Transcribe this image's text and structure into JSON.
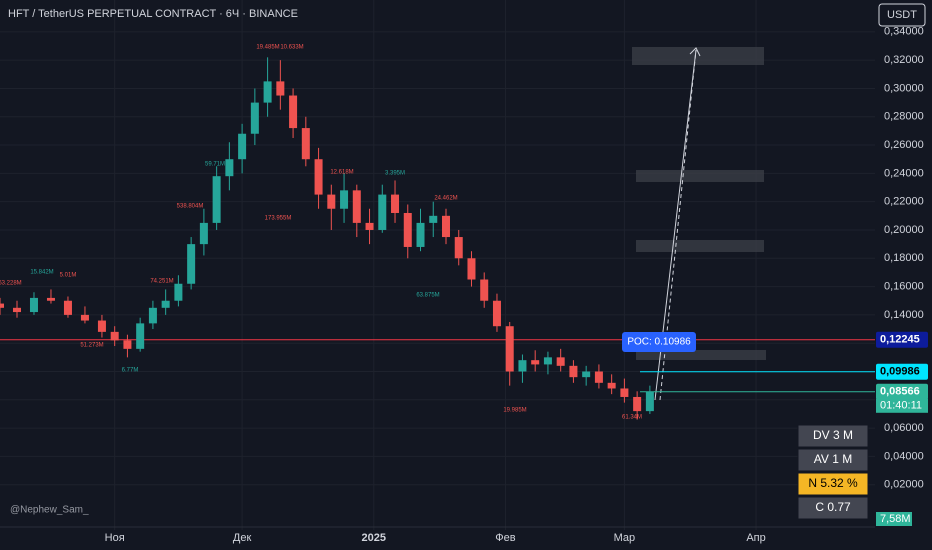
{
  "chart_data": {
    "type": "candlestick",
    "title": "HFT / TetherUS PERPETUAL CONTRACT · 6Ч · BINANCE",
    "currency": "USDT",
    "watermark": "@Nephew_Sam_",
    "x": [
      -27,
      -23,
      -19,
      -15,
      -11,
      -7,
      -3,
      0,
      3,
      6,
      9,
      12,
      15,
      18,
      21,
      24,
      27,
      30,
      33,
      36,
      39,
      42,
      45,
      48,
      51,
      54,
      57,
      60,
      63,
      66,
      69,
      72,
      75,
      78,
      81,
      84,
      87,
      90,
      93,
      96,
      99,
      102,
      105,
      108,
      111,
      114,
      117,
      120,
      123,
      126
    ],
    "open": [
      0.148,
      0.145,
      0.142,
      0.152,
      0.15,
      0.14,
      0.136,
      0.128,
      0.122,
      0.116,
      0.134,
      0.145,
      0.15,
      0.162,
      0.19,
      0.205,
      0.238,
      0.25,
      0.268,
      0.29,
      0.305,
      0.295,
      0.272,
      0.25,
      0.225,
      0.215,
      0.228,
      0.205,
      0.2,
      0.225,
      0.212,
      0.188,
      0.205,
      0.21,
      0.195,
      0.18,
      0.165,
      0.15,
      0.132,
      0.1,
      0.108,
      0.105,
      0.11,
      0.104,
      0.096,
      0.1,
      0.092,
      0.088,
      0.082,
      0.072
    ],
    "high": [
      0.152,
      0.15,
      0.156,
      0.158,
      0.153,
      0.146,
      0.14,
      0.132,
      0.126,
      0.138,
      0.15,
      0.158,
      0.168,
      0.195,
      0.215,
      0.245,
      0.262,
      0.275,
      0.3,
      0.322,
      0.32,
      0.3,
      0.28,
      0.258,
      0.232,
      0.24,
      0.232,
      0.215,
      0.232,
      0.235,
      0.218,
      0.215,
      0.22,
      0.215,
      0.2,
      0.185,
      0.17,
      0.155,
      0.135,
      0.112,
      0.115,
      0.114,
      0.116,
      0.108,
      0.104,
      0.105,
      0.098,
      0.095,
      0.086,
      0.09
    ],
    "low": [
      0.14,
      0.138,
      0.14,
      0.148,
      0.138,
      0.134,
      0.124,
      0.118,
      0.11,
      0.114,
      0.13,
      0.14,
      0.146,
      0.158,
      0.182,
      0.2,
      0.228,
      0.24,
      0.26,
      0.28,
      0.285,
      0.265,
      0.245,
      0.215,
      0.2,
      0.205,
      0.195,
      0.19,
      0.198,
      0.205,
      0.18,
      0.185,
      0.195,
      0.19,
      0.175,
      0.16,
      0.145,
      0.128,
      0.09,
      0.092,
      0.1,
      0.098,
      0.1,
      0.092,
      0.09,
      0.088,
      0.084,
      0.078,
      0.066,
      0.07
    ],
    "close": [
      0.145,
      0.142,
      0.152,
      0.15,
      0.14,
      0.136,
      0.128,
      0.122,
      0.116,
      0.134,
      0.145,
      0.15,
      0.162,
      0.19,
      0.205,
      0.238,
      0.25,
      0.268,
      0.29,
      0.305,
      0.295,
      0.272,
      0.25,
      0.225,
      0.215,
      0.228,
      0.205,
      0.2,
      0.225,
      0.212,
      0.188,
      0.205,
      0.21,
      0.195,
      0.18,
      0.165,
      0.15,
      0.132,
      0.1,
      0.108,
      0.105,
      0.11,
      0.104,
      0.096,
      0.1,
      0.092,
      0.088,
      0.082,
      0.072,
      0.08566
    ],
    "up_color": "#26a69a",
    "down_color": "#ef5350",
    "xlim": [
      -27,
      179
    ],
    "xticks": [
      {
        "value": 0,
        "label": "Ноя"
      },
      {
        "value": 30,
        "label": "Дек"
      },
      {
        "value": 61,
        "label": "2025"
      },
      {
        "value": 92,
        "label": "Фев"
      },
      {
        "value": 120,
        "label": "Мар"
      },
      {
        "value": 151,
        "label": "Апр"
      }
    ],
    "ylim": [
      -0.012,
      0.3625
    ],
    "yticks": [
      {
        "value": 0.34,
        "label": "0,34000"
      },
      {
        "value": 0.32,
        "label": "0,32000"
      },
      {
        "value": 0.3,
        "label": "0,30000"
      },
      {
        "value": 0.28,
        "label": "0,28000"
      },
      {
        "value": 0.26,
        "label": "0,26000"
      },
      {
        "value": 0.24,
        "label": "0,24000"
      },
      {
        "value": 0.22,
        "label": "0,22000"
      },
      {
        "value": 0.2,
        "label": "0,20000"
      },
      {
        "value": 0.18,
        "label": "0,18000"
      },
      {
        "value": 0.16,
        "label": "0,16000"
      },
      {
        "value": 0.14,
        "label": "0,14000"
      },
      {
        "value": 0.12,
        "label": "0,12000"
      },
      {
        "value": 0.1,
        "label": "0,10000"
      },
      {
        "value": 0.08,
        "label": "0,08000"
      },
      {
        "value": 0.06,
        "label": "0,06000"
      },
      {
        "value": 0.04,
        "label": "0,04000"
      },
      {
        "value": 0.02,
        "label": "0,02000"
      }
    ],
    "grid": true,
    "levels": [
      {
        "value": 0.12245,
        "label": "0,12245",
        "color": "#0d1c9c",
        "text_color": "#ffffff"
      },
      {
        "value": 0.09986,
        "label": "0,09986",
        "color": "#00e5ff",
        "text_color": "#000000"
      },
      {
        "value": 0.08566,
        "label": "0,08566",
        "color": "#2fb59a",
        "text_color": "#ffffff"
      }
    ],
    "countdown": "01:40:11",
    "poc": "POC: 0.10986",
    "volume_label": "7,58M",
    "annotations": [
      "19.485M",
      "10.633M",
      "59.71M",
      "538.804M",
      "74.251M",
      "15.842M",
      "5.01M",
      "53.228M",
      "6.77M",
      "51.273M",
      "12.618M",
      "3.395M",
      "24.462M",
      "173.955M",
      "63.875M",
      "19.985M",
      "61.34M"
    ],
    "stats": [
      "DV 3 M",
      "AV 1 M",
      "N 5.32 %",
      "C 0.77"
    ]
  }
}
